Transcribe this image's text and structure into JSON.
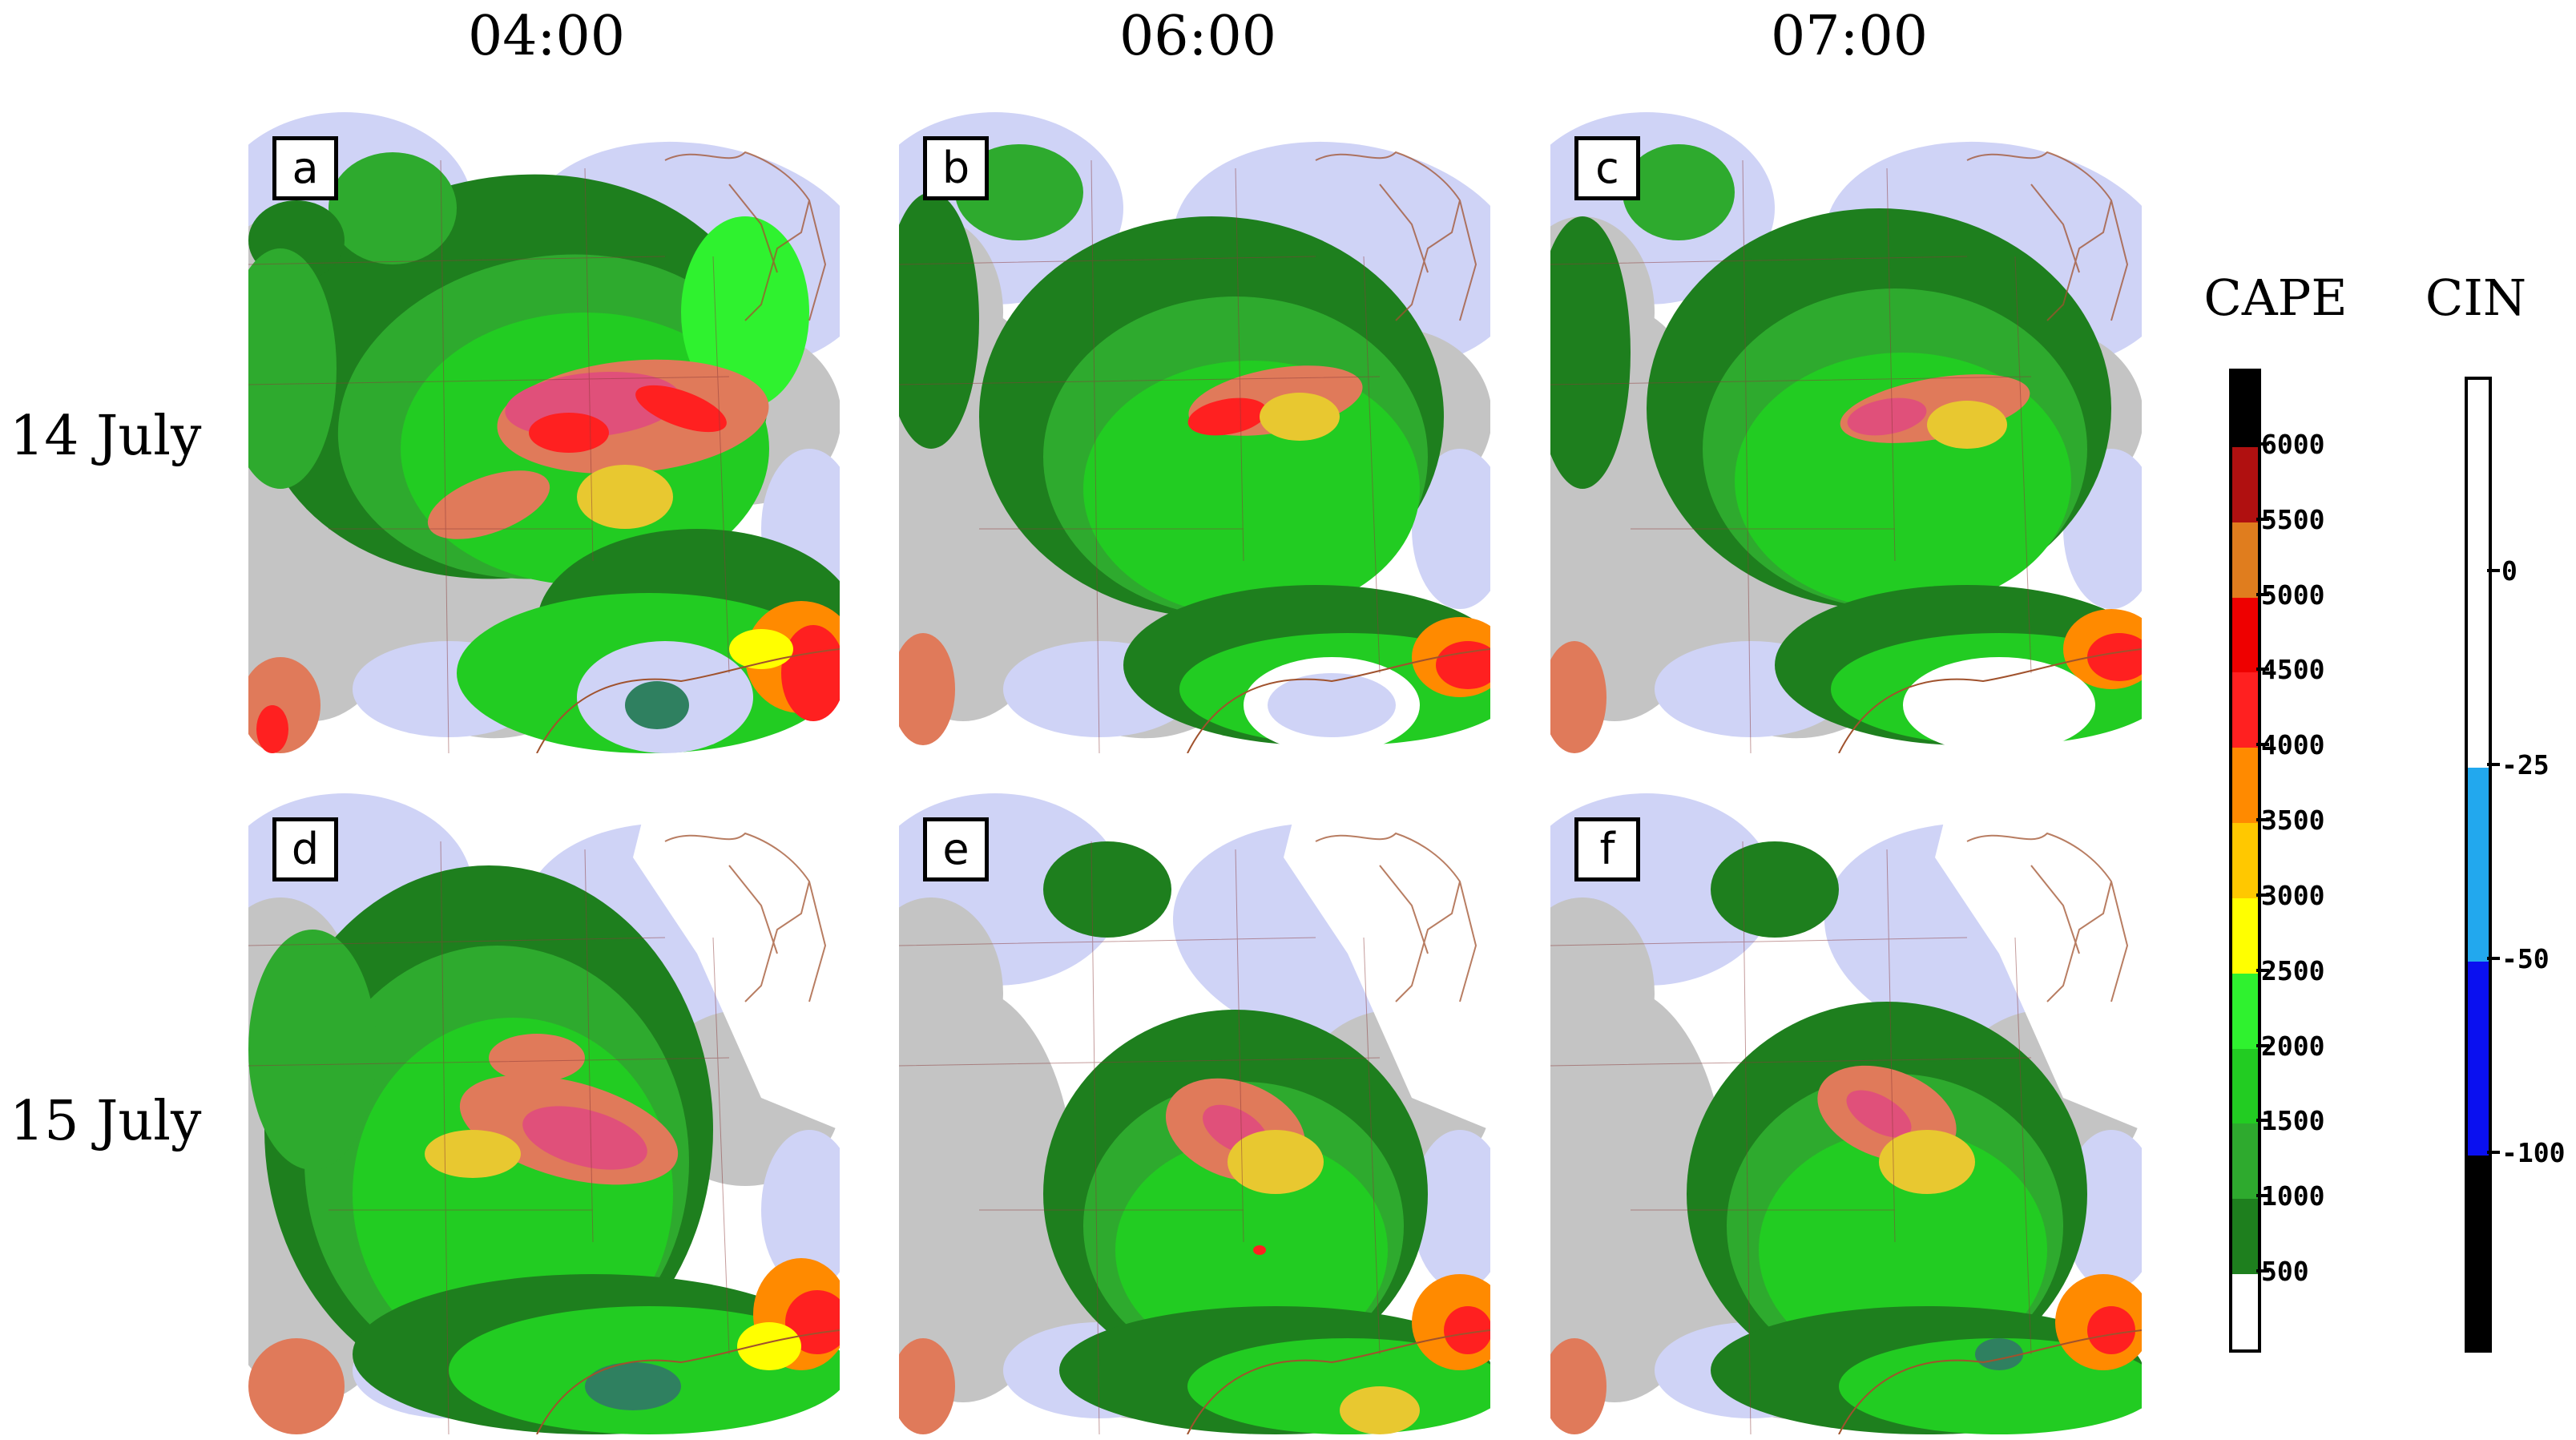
{
  "columns": [
    "04:00",
    "06:00",
    "07:00"
  ],
  "rows": [
    "14 July",
    "15 July"
  ],
  "panels": [
    {
      "letter": "a",
      "column": "04:00",
      "row": "14 July"
    },
    {
      "letter": "b",
      "column": "06:00",
      "row": "14 July"
    },
    {
      "letter": "c",
      "column": "07:00",
      "row": "14 July"
    },
    {
      "letter": "d",
      "column": "04:00",
      "row": "15 July"
    },
    {
      "letter": "e",
      "column": "06:00",
      "row": "15 July"
    },
    {
      "letter": "f",
      "column": "07:00",
      "row": "15 July"
    }
  ],
  "cape_scale": {
    "title": "CAPE",
    "ticks": [
      "6000",
      "5500",
      "5000",
      "4500",
      "4000",
      "3500",
      "3000",
      "2500",
      "2000",
      "1500",
      "1000",
      "500"
    ],
    "bands_bottom_to_top": [
      {
        "range": "<500",
        "color": "#ffffff"
      },
      {
        "range": "500-1000",
        "color": "#1e7f1e"
      },
      {
        "range": "1000-1500",
        "color": "#2eaa2e"
      },
      {
        "range": "1500-2000",
        "color": "#22cc22"
      },
      {
        "range": "2000-2500",
        "color": "#2ff22f"
      },
      {
        "range": "2500-3000",
        "color": "#ffff00"
      },
      {
        "range": "3000-3500",
        "color": "#ffc800"
      },
      {
        "range": "3500-4000",
        "color": "#ff8a00"
      },
      {
        "range": "4000-4500",
        "color": "#ff2020"
      },
      {
        "range": "4500-5000",
        "color": "#ee0000"
      },
      {
        "range": "5000-5500",
        "color": "#e07d1e"
      },
      {
        "range": "5500-6000",
        "color": "#b01010"
      },
      {
        "range": ">6000",
        "color": "#000000"
      }
    ]
  },
  "cin_scale": {
    "title": "CIN",
    "ticks": [
      "0",
      "-25",
      "-50",
      "-100"
    ],
    "bands_top_to_bottom": [
      {
        "range": ">0",
        "color": "#ffffff"
      },
      {
        "range": "0 to -25",
        "color": "#ffffff"
      },
      {
        "range": "-25 to -50",
        "color": "#22a8ee"
      },
      {
        "range": "-50 to -100",
        "color": "#0a10f0"
      },
      {
        "range": "<-100",
        "color": "#000000"
      }
    ]
  }
}
